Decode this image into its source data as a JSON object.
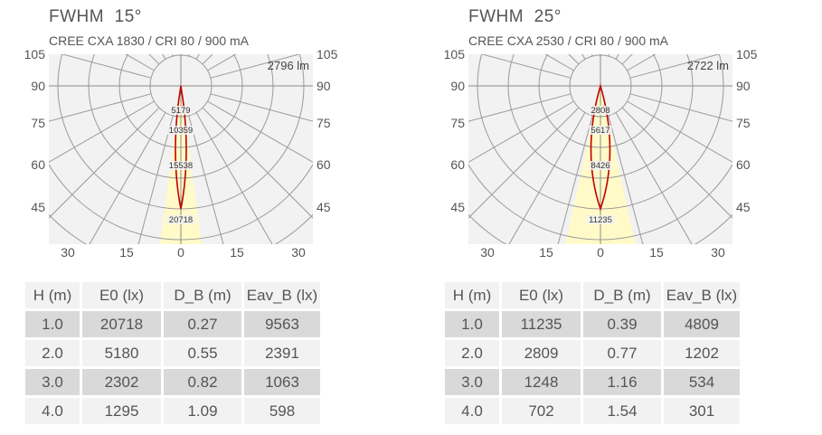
{
  "panels": [
    {
      "title": "FWHM  15°",
      "subtitle": "CREE CXA 1830 / CRI 80 / 900 mA",
      "table": {
        "headers": [
          "H (m)",
          "E0 (lx)",
          "D_B (m)",
          "Eav_B (lx)"
        ],
        "rows": [
          [
            "1.0",
            "20718",
            "0.27",
            "9563"
          ],
          [
            "2.0",
            "5180",
            "0.55",
            "2391"
          ],
          [
            "3.0",
            "2302",
            "0.82",
            "1063"
          ],
          [
            "4.0",
            "1295",
            "1.09",
            "598"
          ]
        ]
      }
    },
    {
      "title": "FWHM  25°",
      "subtitle": "CREE CXA 2530 / CRI 80 / 900 mA",
      "table": {
        "headers": [
          "H (m)",
          "E0 (lx)",
          "D_B (m)",
          "Eav_B (lx)"
        ],
        "rows": [
          [
            "1.0",
            "11235",
            "0.39",
            "4809"
          ],
          [
            "2.0",
            "2809",
            "0.77",
            "1202"
          ],
          [
            "3.0",
            "1248",
            "1.16",
            "534"
          ],
          [
            "4.0",
            "702",
            "1.54",
            "301"
          ]
        ]
      }
    }
  ],
  "chart_data": [
    {
      "type": "polar",
      "title": "FWHM  15°",
      "lumens_label": "2796 lm",
      "left_angle_labels": [
        "105",
        "90",
        "75",
        "60",
        "45"
      ],
      "right_angle_labels": [
        "105",
        "90",
        "75",
        "60",
        "45"
      ],
      "bottom_angle_labels": [
        "30",
        "15",
        "0",
        "15",
        "30"
      ],
      "ring_values": [
        "5179",
        "10359",
        "15538",
        "20718"
      ],
      "beam_angle_deg": 15,
      "curve_color": "#c00000",
      "beam_fill": "#fffac8"
    },
    {
      "type": "polar",
      "title": "FWHM  25°",
      "lumens_label": "2722 lm",
      "left_angle_labels": [
        "105",
        "90",
        "75",
        "60",
        "45"
      ],
      "right_angle_labels": [
        "105",
        "90",
        "75",
        "60",
        "45"
      ],
      "bottom_angle_labels": [
        "30",
        "15",
        "0",
        "15",
        "30"
      ],
      "ring_values": [
        "2808",
        "5617",
        "8426",
        "11235"
      ],
      "beam_angle_deg": 25,
      "curve_color": "#c00000",
      "beam_fill": "#fffac8"
    }
  ]
}
